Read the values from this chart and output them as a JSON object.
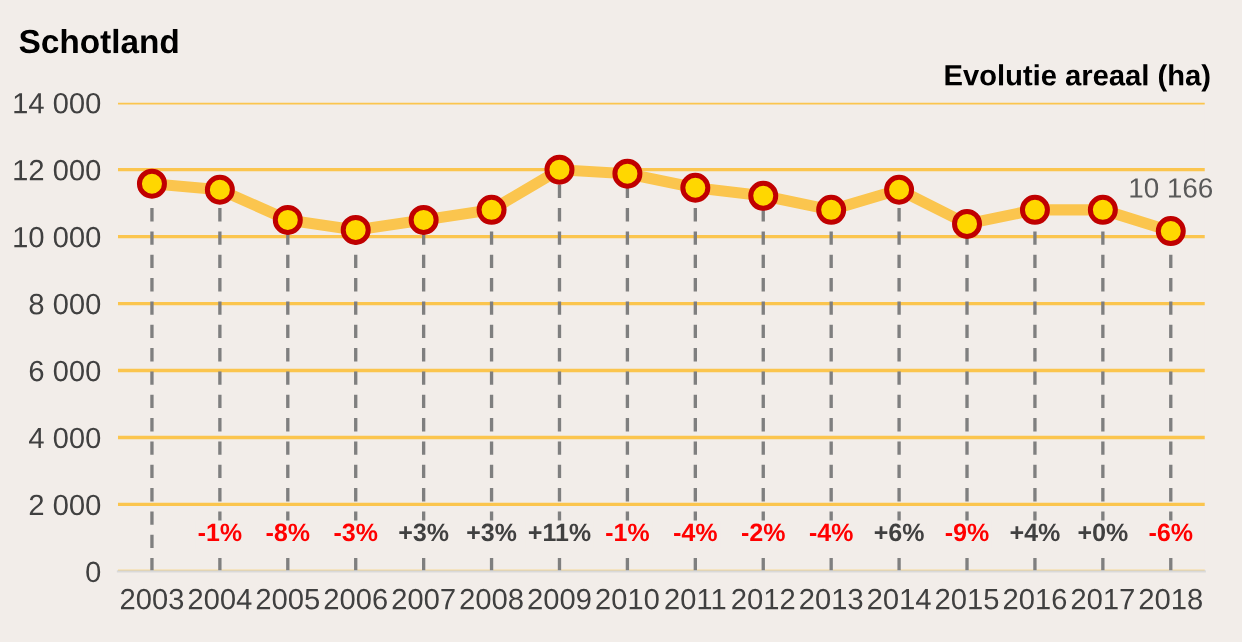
{
  "chart_data": {
    "type": "line",
    "title": "Schotland",
    "ylabel": "Evolutie areaal (ha)",
    "categories": [
      "2003",
      "2004",
      "2005",
      "2006",
      "2007",
      "2008",
      "2009",
      "2010",
      "2011",
      "2012",
      "2013",
      "2014",
      "2015",
      "2016",
      "2017",
      "2018"
    ],
    "series": [
      {
        "color": "#fbc54e",
        "values": [
          11580,
          11400,
          10500,
          10200,
          10500,
          10800,
          12000,
          11880,
          11460,
          11220,
          10800,
          11400,
          10380,
          10800,
          10800,
          10166
        ]
      }
    ],
    "ylim": [
      0,
      14000
    ],
    "yticks": [
      {
        "value": 0,
        "label": "0"
      },
      {
        "value": 2000,
        "label": "2 000"
      },
      {
        "value": 4000,
        "label": "4 000"
      },
      {
        "value": 6000,
        "label": "6 000"
      },
      {
        "value": 8000,
        "label": "8 000"
      },
      {
        "value": 10000,
        "label": "10 000"
      },
      {
        "value": 12000,
        "label": "12 000"
      },
      {
        "value": 14000,
        "label": "14 000"
      }
    ],
    "grid": true,
    "marker": "circle",
    "line_style": "solid",
    "annotations": [
      {
        "text": "10 166",
        "x": "2018",
        "y": 10166
      },
      {
        "text": "-1%",
        "x": "2004",
        "y": 1100
      },
      {
        "text": "-8%",
        "x": "2005",
        "y": 1100
      },
      {
        "text": "-3%",
        "x": "2006",
        "y": 1100
      },
      {
        "text": "+3%",
        "x": "2007",
        "y": 1100
      },
      {
        "text": "+3%",
        "x": "2008",
        "y": 1100
      },
      {
        "text": "+11%",
        "x": "2009",
        "y": 1100
      },
      {
        "text": "-1%",
        "x": "2010",
        "y": 1100
      },
      {
        "text": "-4%",
        "x": "2011",
        "y": 1100
      },
      {
        "text": "-2%",
        "x": "2012",
        "y": 1100
      },
      {
        "text": "-4%",
        "x": "2013",
        "y": 1100
      },
      {
        "text": "+6%",
        "x": "2014",
        "y": 1100
      },
      {
        "text": "-9%",
        "x": "2015",
        "y": 1100
      },
      {
        "text": "+4%",
        "x": "2016",
        "y": 1100
      },
      {
        "text": "+0%",
        "x": "2017",
        "y": 1100
      },
      {
        "text": "-6%",
        "x": "2018",
        "y": 1100
      }
    ]
  }
}
